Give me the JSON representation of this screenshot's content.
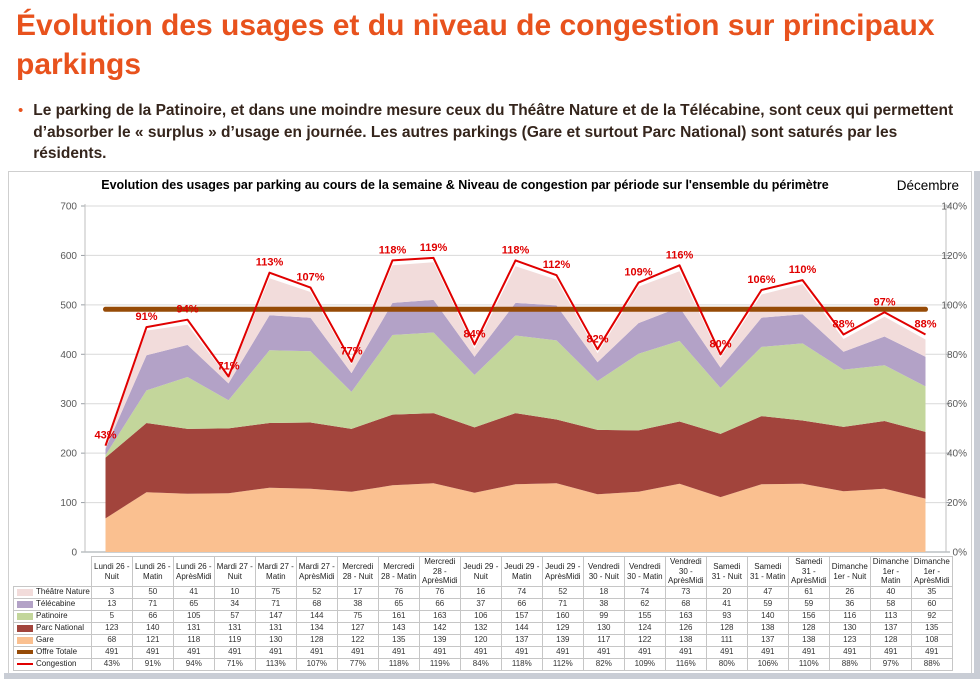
{
  "page": {
    "title": "Évolution des usages et du niveau de congestion sur principaux parkings",
    "bullet_marker": "•",
    "bullet_text": "Le parking de la Patinoire, et dans une moindre mesure ceux du Théâtre Nature et de la Télécabine, sont ceux qui permettent d’absorber le « surplus » d’usage en journée. Les autres parkings (Gare et surtout Parc National) sont saturés par les résidents.",
    "accent_color": "#E8521D",
    "body_text_color": "#35251C"
  },
  "panel": {
    "chart_title": "Evolution des usages par parking au cours de la semaine & Niveau de congestion par période sur l'ensemble du périmètre",
    "corner_label": "Décembre"
  },
  "chart_data": {
    "type": "area",
    "stacked": true,
    "title": "Evolution des usages par parking au cours de la semaine & Niveau de congestion par période sur l'ensemble du périmètre",
    "categories": [
      "Lundi 26 - Nuit",
      "Lundi 26 - Matin",
      "Lundi 26 - AprèsMidi",
      "Mardi 27 - Nuit",
      "Mardi 27 - Matin",
      "Mardi 27 - AprèsMidi",
      "Mercredi 28 - Nuit",
      "Mercredi 28 - Matin",
      "Mercredi 28 - AprèsMidi",
      "Jeudi 29 - Nuit",
      "Jeudi 29 - Matin",
      "Jeudi 29 - AprèsMidi",
      "Vendredi 30 - Nuit",
      "Vendredi 30 - Matin",
      "Vendredi 30 - AprèsMidi",
      "Samedi 31 - Nuit",
      "Samedi 31 - Matin",
      "Samedi 31 - AprèsMidi",
      "Dimanche 1er - Nuit",
      "Dimanche 1er - Matin",
      "Dimanche 1er - AprèsMidi"
    ],
    "series": [
      {
        "name": "Théâtre Nature",
        "type": "area",
        "color": "#F2DCDB",
        "values": [
          3,
          50,
          41,
          10,
          75,
          52,
          17,
          76,
          76,
          16,
          74,
          52,
          18,
          74,
          73,
          20,
          47,
          61,
          26,
          40,
          35
        ]
      },
      {
        "name": "Télécabine",
        "type": "area",
        "color": "#B3A2C7",
        "values": [
          13,
          71,
          65,
          34,
          71,
          68,
          38,
          65,
          66,
          37,
          66,
          71,
          38,
          62,
          68,
          41,
          59,
          59,
          36,
          58,
          60
        ]
      },
      {
        "name": "Patinoire",
        "type": "area",
        "color": "#C3D69B",
        "values": [
          5,
          66,
          105,
          57,
          147,
          144,
          75,
          161,
          163,
          106,
          157,
          160,
          99,
          155,
          163,
          93,
          140,
          156,
          116,
          113,
          92
        ]
      },
      {
        "name": "Parc National",
        "type": "area",
        "color": "#A2443C",
        "values": [
          123,
          140,
          131,
          131,
          131,
          134,
          127,
          143,
          142,
          132,
          144,
          129,
          130,
          124,
          126,
          128,
          138,
          128,
          130,
          137,
          135
        ]
      },
      {
        "name": "Gare",
        "type": "area",
        "color": "#FAC090",
        "values": [
          68,
          121,
          118,
          119,
          130,
          128,
          122,
          135,
          139,
          120,
          137,
          139,
          117,
          122,
          138,
          111,
          137,
          138,
          123,
          128,
          108
        ]
      },
      {
        "name": "Offre Totale",
        "type": "line",
        "axis": "left",
        "color": "#964B07",
        "values": [
          491,
          491,
          491,
          491,
          491,
          491,
          491,
          491,
          491,
          491,
          491,
          491,
          491,
          491,
          491,
          491,
          491,
          491,
          491,
          491,
          491
        ]
      },
      {
        "name": "Congestion",
        "type": "line",
        "axis": "right",
        "format": "percent",
        "color": "#E00000",
        "values": [
          43,
          91,
          94,
          71,
          113,
          107,
          77,
          118,
          119,
          84,
          118,
          112,
          82,
          109,
          116,
          80,
          106,
          110,
          88,
          97,
          88
        ]
      }
    ],
    "stack_order_bottom_to_top": [
      "Gare",
      "Parc National",
      "Patinoire",
      "Télécabine",
      "Théâtre Nature"
    ],
    "left_axis": {
      "min": 0,
      "max": 700,
      "step": 100
    },
    "right_axis": {
      "min": 0,
      "max": 140,
      "step": 20,
      "unit": "%"
    },
    "grid": true,
    "legend_position": "table-left",
    "data_labels_series": "Congestion"
  }
}
